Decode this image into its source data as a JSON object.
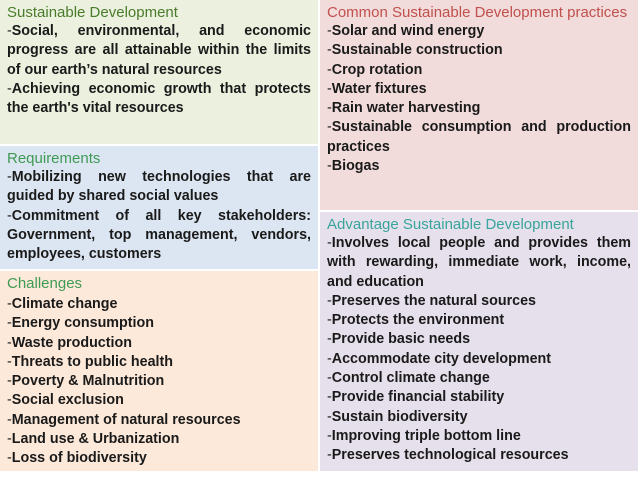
{
  "colors": {
    "sustainable_bg": "#ebf1de",
    "sustainable_heading": "#4a7b2b",
    "requirements_bg": "#dce6f2",
    "requirements_heading": "#3f9a54",
    "challenges_bg": "#fde9d9",
    "challenges_heading": "#3f9a54",
    "common_bg": "#f2dcdb",
    "common_heading": "#c0504d",
    "advantage_bg": "#e6e0ec",
    "advantage_heading": "#39a49c"
  },
  "sustainable": {
    "heading": "Sustainable Development",
    "items": [
      "Social, environmental, and economic progress are all attainable within the limits of our earth’s natural resources",
      "Achieving economic growth that protects the earth's vital resources"
    ]
  },
  "requirements": {
    "heading": "Requirements",
    "items": [
      "Mobilizing new technologies that are guided by shared social values",
      "Commitment of all key stakeholders: Government, top management, vendors, employees, customers"
    ]
  },
  "challenges": {
    "heading": "Challenges",
    "items": [
      "Climate change",
      "Energy consumption",
      "Waste production",
      "Threats to public health",
      "Poverty & Malnutrition",
      "Social exclusion",
      "Management of natural resources",
      "Land use & Urbanization",
      "Loss of biodiversity"
    ]
  },
  "common": {
    "heading": "Common Sustainable Development practices",
    "items": [
      "Solar and wind energy",
      "Sustainable construction",
      "Crop rotation",
      "Water fixtures",
      "Rain water harvesting",
      "Sustainable consumption and production practices",
      "Biogas"
    ]
  },
  "advantage": {
    "heading": "Advantage Sustainable Development",
    "items": [
      "Involves local people and provides them with rewarding, immediate work, income, and education",
      "Preserves the natural sources",
      "Protects the environment",
      "Provide basic needs",
      "Accommodate city development",
      "Control climate change",
      "Provide financial stability",
      "Sustain biodiversity",
      "Improving triple bottom line",
      "Preserves technological resources"
    ]
  }
}
